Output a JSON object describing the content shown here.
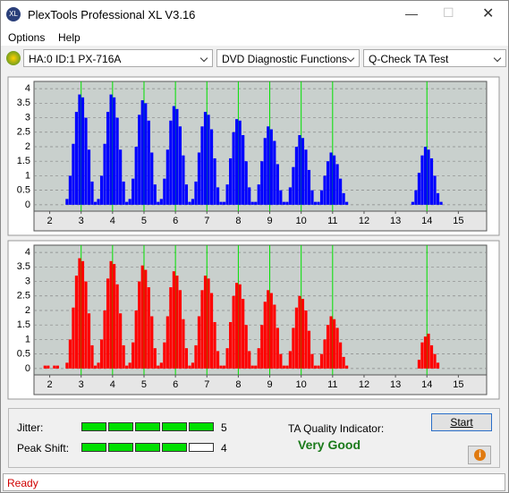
{
  "window": {
    "title": "PlexTools Professional XL V3.16"
  },
  "menu": [
    "Options",
    "Help"
  ],
  "toolbar": {
    "drive": "HA:0 ID:1  PX-716A",
    "function": "DVD Diagnostic Functions",
    "test": "Q-Check TA Test"
  },
  "chart_data": [
    {
      "type": "bar",
      "color": "#0000ff",
      "marker_color": "#00e000",
      "markers": [
        3,
        4,
        5,
        6,
        7,
        8,
        9,
        10,
        11,
        14
      ],
      "xlim": [
        1.5,
        15.9
      ],
      "xticks": [
        2,
        3,
        4,
        5,
        6,
        7,
        8,
        9,
        10,
        11,
        12,
        13,
        14,
        15
      ],
      "ylim": [
        -0.22,
        4.25
      ],
      "yticks": [
        0,
        0.5,
        1,
        1.5,
        2,
        2.5,
        3,
        3.5,
        4
      ],
      "grid": true,
      "x": [
        2.55,
        2.65,
        2.75,
        2.85,
        2.95,
        3.05,
        3.15,
        3.25,
        3.35,
        3.45,
        3.55,
        3.65,
        3.75,
        3.85,
        3.95,
        4.05,
        4.15,
        4.25,
        4.35,
        4.45,
        4.55,
        4.65,
        4.75,
        4.85,
        4.95,
        5.05,
        5.15,
        5.25,
        5.35,
        5.45,
        5.55,
        5.65,
        5.75,
        5.85,
        5.95,
        6.05,
        6.15,
        6.25,
        6.35,
        6.45,
        6.55,
        6.65,
        6.75,
        6.85,
        6.95,
        7.05,
        7.15,
        7.25,
        7.35,
        7.45,
        7.55,
        7.65,
        7.75,
        7.85,
        7.95,
        8.05,
        8.15,
        8.25,
        8.35,
        8.45,
        8.55,
        8.65,
        8.75,
        8.85,
        8.95,
        9.05,
        9.15,
        9.25,
        9.35,
        9.45,
        9.55,
        9.65,
        9.75,
        9.85,
        9.95,
        10.05,
        10.15,
        10.25,
        10.35,
        10.45,
        10.55,
        10.65,
        10.75,
        10.85,
        10.95,
        11.05,
        11.15,
        11.25,
        11.35,
        11.45,
        13.55,
        13.65,
        13.75,
        13.85,
        13.95,
        14.05,
        14.15,
        14.25,
        14.35,
        14.45
      ],
      "values": [
        0.2,
        1.0,
        2.1,
        3.2,
        3.8,
        3.7,
        3.0,
        1.9,
        0.8,
        0.1,
        0.2,
        1.0,
        2.1,
        3.2,
        3.8,
        3.7,
        3.0,
        1.9,
        0.8,
        0.1,
        0.2,
        0.9,
        2.0,
        3.1,
        3.6,
        3.5,
        2.9,
        1.8,
        0.7,
        0.1,
        0.2,
        0.9,
        1.9,
        2.9,
        3.4,
        3.3,
        2.7,
        1.7,
        0.7,
        0.1,
        0.2,
        0.8,
        1.8,
        2.7,
        3.2,
        3.1,
        2.6,
        1.6,
        0.6,
        0.1,
        0.1,
        0.7,
        1.6,
        2.5,
        2.95,
        2.9,
        2.4,
        1.5,
        0.6,
        0.1,
        0.1,
        0.7,
        1.5,
        2.3,
        2.7,
        2.6,
        2.2,
        1.4,
        0.5,
        0.1,
        0.1,
        0.6,
        1.3,
        2.0,
        2.4,
        2.3,
        1.9,
        1.2,
        0.5,
        0.1,
        0.1,
        0.5,
        1.0,
        1.5,
        1.8,
        1.7,
        1.4,
        0.9,
        0.4,
        0.1,
        0.1,
        0.5,
        1.1,
        1.7,
        2.0,
        1.9,
        1.6,
        1.0,
        0.4,
        0.1
      ]
    },
    {
      "type": "bar",
      "color": "#ff0000",
      "marker_color": "#00e000",
      "markers": [
        3,
        4,
        5,
        6,
        7,
        8,
        9,
        10,
        11,
        14
      ],
      "xlim": [
        1.5,
        15.9
      ],
      "xticks": [
        2,
        3,
        4,
        5,
        6,
        7,
        8,
        9,
        10,
        11,
        12,
        13,
        14,
        15
      ],
      "ylim": [
        -0.22,
        4.25
      ],
      "yticks": [
        0,
        0.5,
        1,
        1.5,
        2,
        2.5,
        3,
        3.5,
        4
      ],
      "grid": true,
      "x": [
        1.85,
        1.95,
        2.15,
        2.25,
        2.55,
        2.65,
        2.75,
        2.85,
        2.95,
        3.05,
        3.15,
        3.25,
        3.35,
        3.45,
        3.55,
        3.65,
        3.75,
        3.85,
        3.95,
        4.05,
        4.15,
        4.25,
        4.35,
        4.45,
        4.55,
        4.65,
        4.75,
        4.85,
        4.95,
        5.05,
        5.15,
        5.25,
        5.35,
        5.45,
        5.55,
        5.65,
        5.75,
        5.85,
        5.95,
        6.05,
        6.15,
        6.25,
        6.35,
        6.45,
        6.55,
        6.65,
        6.75,
        6.85,
        6.95,
        7.05,
        7.15,
        7.25,
        7.35,
        7.45,
        7.55,
        7.65,
        7.75,
        7.85,
        7.95,
        8.05,
        8.15,
        8.25,
        8.35,
        8.45,
        8.55,
        8.65,
        8.75,
        8.85,
        8.95,
        9.05,
        9.15,
        9.25,
        9.35,
        9.45,
        9.55,
        9.65,
        9.75,
        9.85,
        9.95,
        10.05,
        10.15,
        10.25,
        10.35,
        10.45,
        10.55,
        10.65,
        10.75,
        10.85,
        10.95,
        11.05,
        11.15,
        11.25,
        11.35,
        11.45,
        13.55,
        13.65,
        13.75,
        13.85,
        13.95,
        14.05,
        14.15,
        14.25,
        14.35,
        14.45
      ],
      "values": [
        0.1,
        0.1,
        0.1,
        0.1,
        0.2,
        1.0,
        2.1,
        3.2,
        3.8,
        3.7,
        3.0,
        1.9,
        0.8,
        0.1,
        0.2,
        1.0,
        2.0,
        3.1,
        3.7,
        3.6,
        2.9,
        1.9,
        0.8,
        0.1,
        0.2,
        0.9,
        2.0,
        3.0,
        3.55,
        3.4,
        2.8,
        1.8,
        0.7,
        0.1,
        0.2,
        0.9,
        1.8,
        2.8,
        3.35,
        3.2,
        2.7,
        1.7,
        0.7,
        0.1,
        0.2,
        0.8,
        1.8,
        2.7,
        3.2,
        3.1,
        2.6,
        1.6,
        0.6,
        0.1,
        0.1,
        0.7,
        1.6,
        2.5,
        2.95,
        2.9,
        2.4,
        1.5,
        0.6,
        0.1,
        0.1,
        0.7,
        1.5,
        2.3,
        2.7,
        2.6,
        2.2,
        1.4,
        0.5,
        0.1,
        0.1,
        0.6,
        1.4,
        2.1,
        2.5,
        2.4,
        2.0,
        1.3,
        0.5,
        0.1,
        0.1,
        0.5,
        1.0,
        1.5,
        1.8,
        1.7,
        1.4,
        0.9,
        0.4,
        0.1,
        0,
        0,
        0.3,
        0.9,
        1.1,
        1.2,
        0.8,
        0.5,
        0.2,
        0
      ]
    }
  ],
  "jitter": {
    "label": "Jitter:",
    "value": 5
  },
  "peak_shift": {
    "label": "Peak Shift:",
    "value": 4
  },
  "quality": {
    "label": "TA Quality Indicator:",
    "result": "Very Good"
  },
  "start_button": "Start",
  "status": "Ready"
}
